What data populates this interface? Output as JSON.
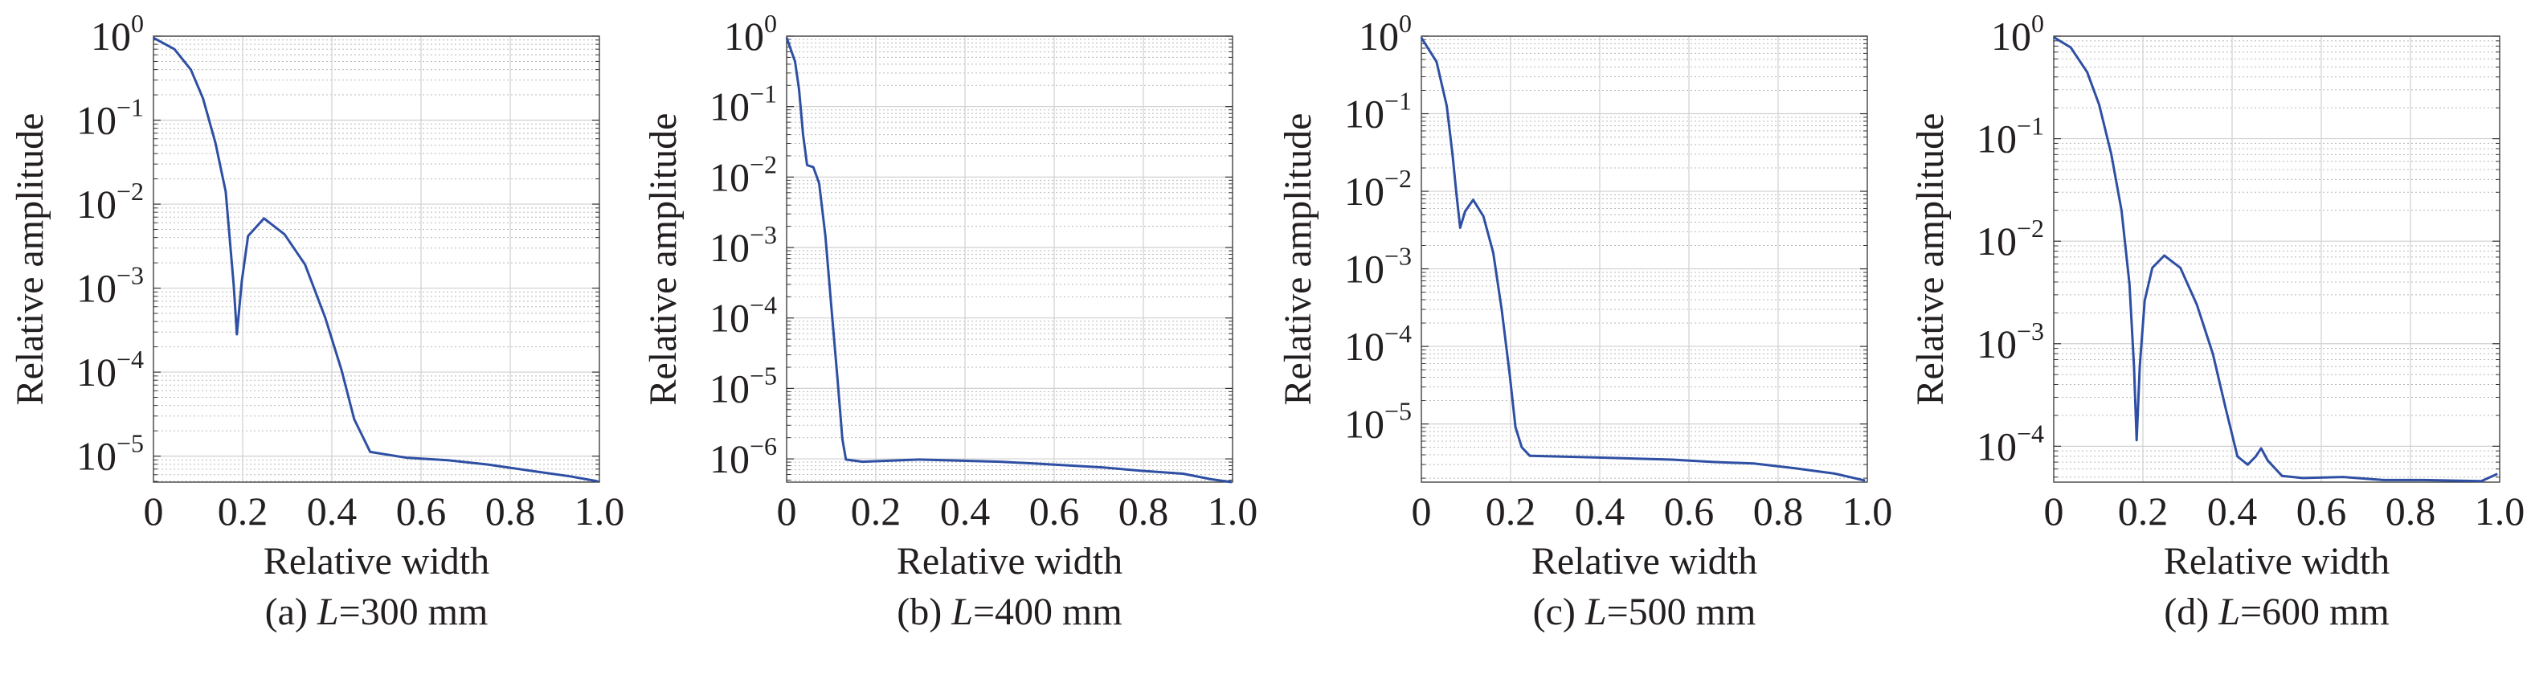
{
  "chart_data": [
    {
      "type": "line",
      "caption": {
        "prefix": "(a) ",
        "var": "L",
        "rest": "=300 mm"
      },
      "xlabel": "Relative width",
      "ylabel": "Relative amplitude",
      "yscale": "log",
      "xlim": [
        0,
        1.0
      ],
      "ylim_log10": [
        -5.31,
        0
      ],
      "xtick_labels": [
        "0",
        "0.2",
        "0.4",
        "0.6",
        "0.8",
        "1.0"
      ],
      "xticks": [
        0,
        0.2,
        0.4,
        0.6,
        0.8,
        1.0
      ],
      "yticks_log10": [
        0,
        -1,
        -2,
        -3,
        -4,
        -5
      ],
      "ytick_labels": [
        "10^0",
        "10^−1",
        "10^−2",
        "10^−3",
        "10^−4",
        "10^−5"
      ],
      "grid": true,
      "line_color": "#2e4fa3",
      "x": [
        0,
        0.047,
        0.084,
        0.111,
        0.139,
        0.162,
        0.18,
        0.187,
        0.198,
        0.212,
        0.248,
        0.294,
        0.34,
        0.385,
        0.422,
        0.45,
        0.486,
        0.568,
        0.66,
        0.75,
        0.84,
        0.933,
        0.997
      ],
      "log10_y": [
        -0.02,
        -0.155,
        -0.4,
        -0.74,
        -1.27,
        -1.85,
        -2.97,
        -3.55,
        -2.92,
        -2.38,
        -2.17,
        -2.36,
        -2.72,
        -3.35,
        -3.98,
        -4.56,
        -4.95,
        -5.02,
        -5.05,
        -5.1,
        -5.17,
        -5.24,
        -5.3
      ]
    },
    {
      "type": "line",
      "caption": {
        "prefix": "(b) ",
        "var": "L",
        "rest": "=400 mm"
      },
      "xlabel": "Relative width",
      "ylabel": "Relative amplitude",
      "yscale": "log",
      "xlim": [
        0,
        1.0
      ],
      "ylim_log10": [
        -6.33,
        0
      ],
      "xtick_labels": [
        "0",
        "0.2",
        "0.4",
        "0.6",
        "0.8",
        "1.0"
      ],
      "xticks": [
        0,
        0.2,
        0.4,
        0.6,
        0.8,
        1.0
      ],
      "yticks_log10": [
        0,
        -1,
        -2,
        -3,
        -4,
        -5,
        -6
      ],
      "ytick_labels": [
        "10^0",
        "10^−1",
        "10^−2",
        "10^−3",
        "10^−4",
        "10^−5",
        "10^−6"
      ],
      "grid": true,
      "line_color": "#2e4fa3",
      "x": [
        0,
        0.019,
        0.028,
        0.037,
        0.046,
        0.06,
        0.073,
        0.087,
        0.1,
        0.114,
        0.125,
        0.133,
        0.17,
        0.297,
        0.479,
        0.57,
        0.707,
        0.798,
        0.889,
        0.953,
        0.998
      ],
      "log10_y": [
        -0.02,
        -0.36,
        -0.76,
        -1.4,
        -1.83,
        -1.86,
        -2.09,
        -2.84,
        -3.82,
        -4.86,
        -5.72,
        -6.01,
        -6.04,
        -6.01,
        -6.04,
        -6.07,
        -6.12,
        -6.17,
        -6.21,
        -6.29,
        -6.33
      ]
    },
    {
      "type": "line",
      "caption": {
        "prefix": "(c) ",
        "var": "L",
        "rest": "=500 mm"
      },
      "xlabel": "Relative width",
      "ylabel": "Relative amplitude",
      "yscale": "log",
      "xlim": [
        0,
        1.0
      ],
      "ylim_log10": [
        -5.75,
        0
      ],
      "xtick_labels": [
        "0",
        "0.2",
        "0.4",
        "0.6",
        "0.8",
        "1.0"
      ],
      "xticks": [
        0,
        0.2,
        0.4,
        0.6,
        0.8,
        1.0
      ],
      "yticks_log10": [
        0,
        -1,
        -2,
        -3,
        -4,
        -5
      ],
      "ytick_labels": [
        "10^0",
        "10^−1",
        "10^−2",
        "10^−3",
        "10^−4",
        "10^−5"
      ],
      "grid": true,
      "line_color": "#2e4fa3",
      "x": [
        0,
        0.034,
        0.057,
        0.07,
        0.079,
        0.087,
        0.098,
        0.116,
        0.139,
        0.161,
        0.18,
        0.198,
        0.211,
        0.225,
        0.243,
        0.38,
        0.562,
        0.654,
        0.745,
        0.836,
        0.927,
        0.995
      ],
      "log10_y": [
        -0.02,
        -0.33,
        -0.9,
        -1.53,
        -2.05,
        -2.47,
        -2.26,
        -2.11,
        -2.32,
        -2.79,
        -3.52,
        -4.36,
        -5.04,
        -5.3,
        -5.41,
        -5.43,
        -5.46,
        -5.49,
        -5.51,
        -5.57,
        -5.64,
        -5.73
      ]
    },
    {
      "type": "line",
      "caption": {
        "prefix": "(d) ",
        "var": "L",
        "rest": "=600 mm"
      },
      "xlabel": "Relative width",
      "ylabel": "Relative amplitude",
      "yscale": "log",
      "xlim": [
        0,
        1.0
      ],
      "ylim_log10": [
        -4.35,
        0
      ],
      "xtick_labels": [
        "0",
        "0.2",
        "0.4",
        "0.6",
        "0.8",
        "1.0"
      ],
      "xticks": [
        0,
        0.2,
        0.4,
        0.6,
        0.8,
        1.0
      ],
      "yticks_log10": [
        0,
        -1,
        -2,
        -3,
        -4
      ],
      "ytick_labels": [
        "10^0",
        "10^−1",
        "10^−2",
        "10^−3",
        "10^−4"
      ],
      "grid": true,
      "line_color": "#2e4fa3",
      "x": [
        0,
        0.038,
        0.075,
        0.102,
        0.129,
        0.152,
        0.17,
        0.18,
        0.186,
        0.193,
        0.204,
        0.221,
        0.248,
        0.284,
        0.321,
        0.357,
        0.385,
        0.412,
        0.435,
        0.453,
        0.465,
        0.48,
        0.512,
        0.558,
        0.649,
        0.74,
        0.831,
        0.959,
        0.995
      ],
      "log10_y": [
        -0.01,
        -0.11,
        -0.35,
        -0.67,
        -1.15,
        -1.7,
        -2.42,
        -3.22,
        -3.94,
        -3.22,
        -2.58,
        -2.26,
        -2.14,
        -2.26,
        -2.62,
        -3.1,
        -3.62,
        -4.1,
        -4.18,
        -4.1,
        -4.02,
        -4.14,
        -4.29,
        -4.31,
        -4.3,
        -4.33,
        -4.33,
        -4.34,
        -4.27
      ]
    }
  ]
}
